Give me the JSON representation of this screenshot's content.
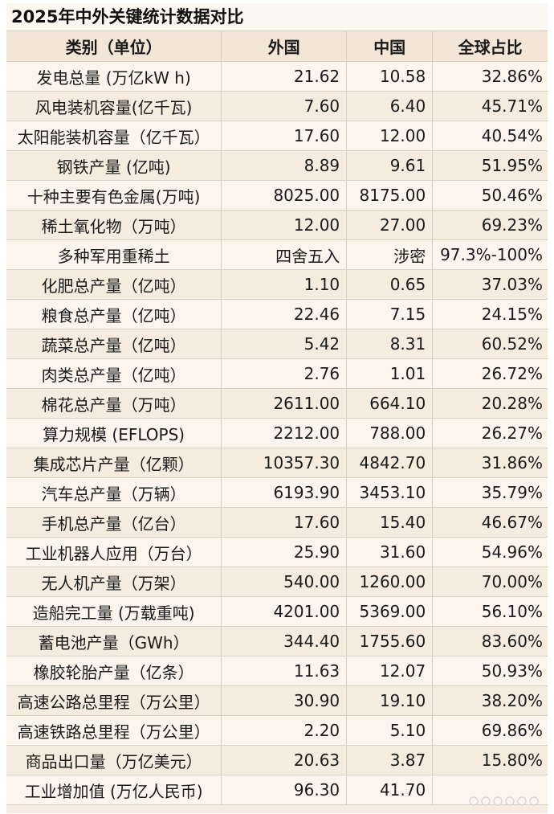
{
  "title": "2025年中外关键统计数据对比",
  "headers": {
    "category": "类别（单位）",
    "foreign": "外国",
    "china": "中国",
    "share": "全球占比"
  },
  "rows": [
    {
      "category": "发电总量 (万亿kW h)",
      "foreign": "21.62",
      "china": "10.58",
      "share": "32.86%"
    },
    {
      "category": "风电装机容量(亿千瓦)",
      "foreign": "7.60",
      "china": "6.40",
      "share": "45.71%"
    },
    {
      "category": "太阳能装机容量（亿千瓦）",
      "foreign": "17.60",
      "china": "12.00",
      "share": "40.54%"
    },
    {
      "category": "钢铁产量 (亿吨)",
      "foreign": "8.89",
      "china": "9.61",
      "share": "51.95%"
    },
    {
      "category": "十种主要有色金属(万吨)",
      "foreign": "8025.00",
      "china": "8175.00",
      "share": "50.46%"
    },
    {
      "category": "稀土氧化物（万吨）",
      "foreign": "12.00",
      "china": "27.00",
      "share": "69.23%"
    },
    {
      "category": "多种军用重稀土",
      "foreign": "四舍五入",
      "china": "涉密",
      "share": "97.3%-100%"
    },
    {
      "category": "化肥总产量（亿吨）",
      "foreign": "1.10",
      "china": "0.65",
      "share": "37.03%"
    },
    {
      "category": "粮食总产量（亿吨）",
      "foreign": "22.46",
      "china": "7.15",
      "share": "24.15%"
    },
    {
      "category": "蔬菜总产量（亿吨）",
      "foreign": "5.42",
      "china": "8.31",
      "share": "60.52%"
    },
    {
      "category": "肉类总产量（亿吨）",
      "foreign": "2.76",
      "china": "1.01",
      "share": "26.72%"
    },
    {
      "category": "棉花总产量（万吨）",
      "foreign": "2611.00",
      "china": "664.10",
      "share": "20.28%"
    },
    {
      "category": "算力规模 (EFLOPS)",
      "foreign": "2212.00",
      "china": "788.00",
      "share": "26.27%"
    },
    {
      "category": "集成芯片产量（亿颗）",
      "foreign": "10357.30",
      "china": "4842.70",
      "share": "31.86%"
    },
    {
      "category": "汽车总产量（万辆）",
      "foreign": "6193.90",
      "china": "3453.10",
      "share": "35.79%"
    },
    {
      "category": "手机总产量（亿台）",
      "foreign": "17.60",
      "china": "15.40",
      "share": "46.67%"
    },
    {
      "category": "工业机器人应用（万台）",
      "foreign": "25.90",
      "china": "31.60",
      "share": "54.96%"
    },
    {
      "category": "无人机产量（万架）",
      "foreign": "540.00",
      "china": "1260.00",
      "share": "70.00%"
    },
    {
      "category": "造船完工量 (万载重吨)",
      "foreign": "4201.00",
      "china": "5369.00",
      "share": "56.10%"
    },
    {
      "category": "蓄电池产量（GWh）",
      "foreign": "344.40",
      "china": "1755.60",
      "share": "83.60%"
    },
    {
      "category": "橡胶轮胎产量（亿条）",
      "foreign": "11.63",
      "china": "12.07",
      "share": "50.93%"
    },
    {
      "category": "高速公路总里程（万公里）",
      "foreign": "30.90",
      "china": "19.10",
      "share": "38.20%"
    },
    {
      "category": "高速铁路总里程（万公里）",
      "foreign": "2.20",
      "china": "5.10",
      "share": "69.86%"
    },
    {
      "category": "商品出口量（万亿美元）",
      "foreign": "20.63",
      "china": "3.87",
      "share": "15.80%"
    },
    {
      "category": "工业增加值 (万亿人民币)",
      "foreign": "96.30",
      "china": "41.70",
      "share": ""
    }
  ]
}
